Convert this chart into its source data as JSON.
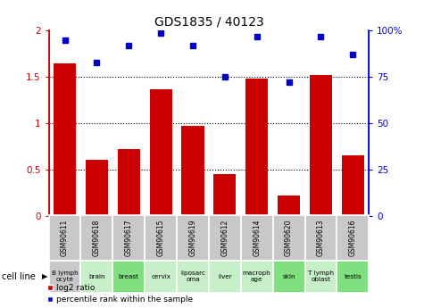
{
  "title": "GDS1835 / 40123",
  "samples": [
    "GSM90611",
    "GSM90618",
    "GSM90617",
    "GSM90615",
    "GSM90619",
    "GSM90612",
    "GSM90614",
    "GSM90620",
    "GSM90613",
    "GSM90616"
  ],
  "cell_lines": [
    "B lymph\nocyte",
    "brain",
    "breast",
    "cervix",
    "liposarc\noma",
    "liver",
    "macroph\nage",
    "skin",
    "T lymph\noblast",
    "testis"
  ],
  "log2_ratio": [
    1.65,
    0.6,
    0.72,
    1.37,
    0.97,
    0.45,
    1.48,
    0.22,
    1.52,
    0.65
  ],
  "percentile_rank": [
    95,
    83,
    92,
    99,
    92,
    75,
    97,
    72,
    97,
    87
  ],
  "bar_color": "#cc0000",
  "dot_color": "#0000cc",
  "ylim_left": [
    0,
    2
  ],
  "ylim_right": [
    0,
    100
  ],
  "yticks_left": [
    0,
    0.5,
    1.0,
    1.5,
    2.0
  ],
  "yticks_right": [
    0,
    25,
    50,
    75,
    100
  ],
  "ytick_labels_left": [
    "0",
    "0.5",
    "1",
    "1.5",
    "2"
  ],
  "ytick_labels_right": [
    "0",
    "25",
    "50",
    "75",
    "100%"
  ],
  "cell_line_bg_gray": "#c8c8c8",
  "cell_line_bg_green_light": "#c8f0c8",
  "cell_line_bg_green": "#80e080",
  "legend_red_label": "log2 ratio",
  "legend_blue_label": "percentile rank within the sample",
  "cell_line_label": "cell line",
  "background_color": "#ffffff",
  "dotted_vals": [
    0.5,
    1.0,
    1.5
  ],
  "cell_alternating": [
    0,
    1,
    0,
    1,
    0,
    1,
    0,
    1,
    0,
    1
  ]
}
